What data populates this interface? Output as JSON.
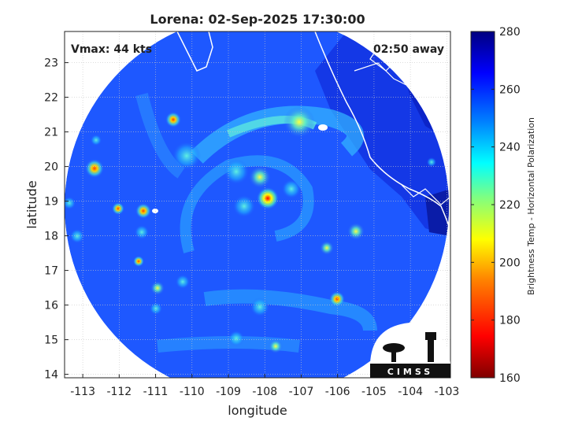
{
  "title": "Lorena: 02-Sep-2025 17:30:00",
  "annotations": {
    "vmax": "Vmax: 44 kts",
    "time_away": "02:50 away"
  },
  "logo_text": "CIMSS",
  "chart_data": {
    "type": "heatmap",
    "xlabel": "longitude",
    "ylabel": "latitude",
    "xlim": [
      -113.5,
      -102.9
    ],
    "ylim": [
      13.9,
      23.9
    ],
    "x_ticks": [
      "-113",
      "-112",
      "-111",
      "-110",
      "-109",
      "-108",
      "-107",
      "-106",
      "-105",
      "-104",
      "-103"
    ],
    "y_ticks": [
      "14",
      "15",
      "16",
      "17",
      "18",
      "19",
      "20",
      "21",
      "22",
      "23"
    ],
    "grid": true,
    "storm_center": {
      "lon": -108.0,
      "lat": 19.1
    },
    "colorbar": {
      "label": "Brightness Temp - Horizontal Polarization",
      "range": [
        160,
        280
      ],
      "ticks": [
        "160",
        "180",
        "200",
        "220",
        "240",
        "260",
        "280"
      ],
      "colors": [
        "#7f0000",
        "#ff0000",
        "#ff8000",
        "#ffff00",
        "#80ff80",
        "#00ffff",
        "#0080ff",
        "#0000ff",
        "#00007f"
      ]
    }
  }
}
